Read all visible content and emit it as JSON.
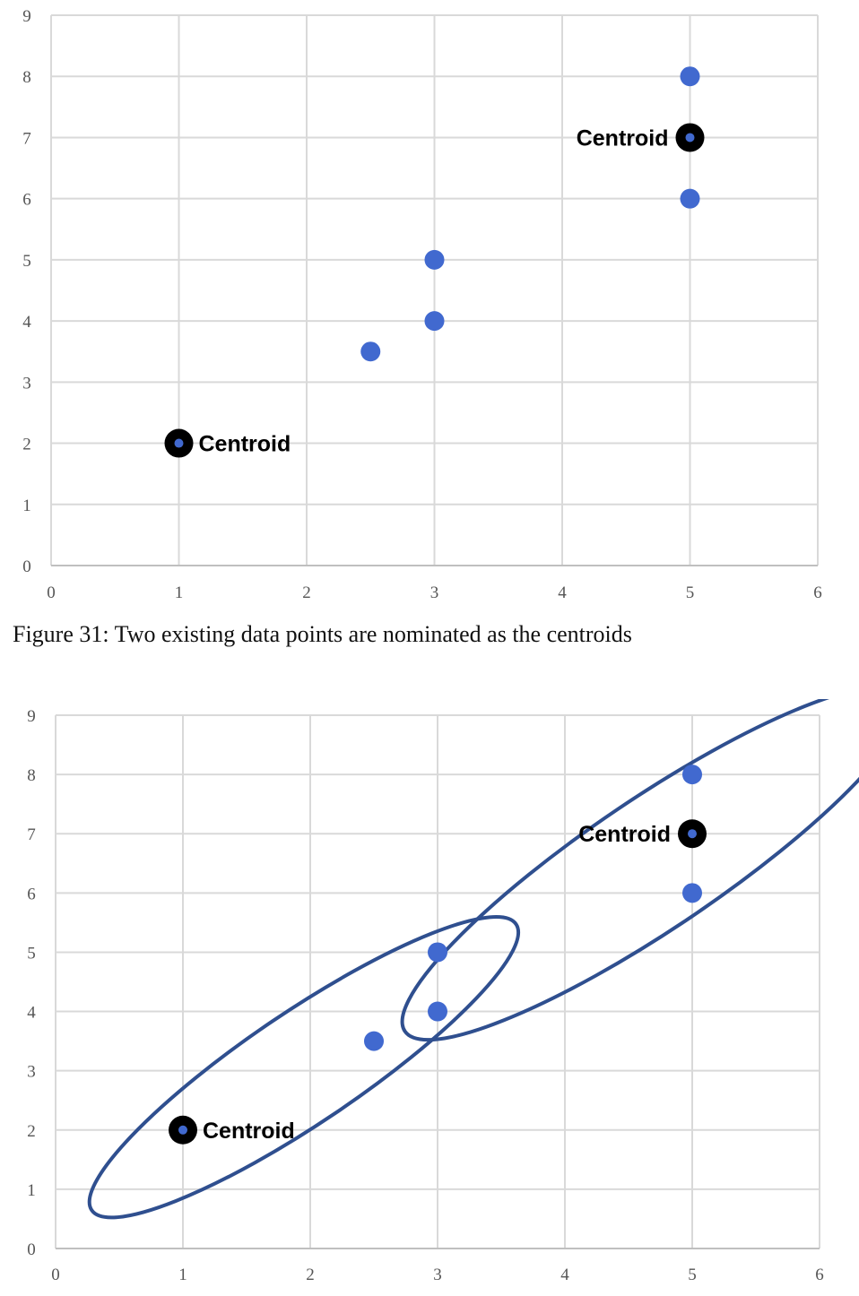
{
  "caption": "Figure 31: Two existing data points are nominated as the centroids",
  "colors": {
    "point": "#4169cf",
    "centroid_ring": "#000000",
    "cluster_ellipse": "#2f4f8f",
    "grid": "#d9d9d9",
    "axis": "#bfbfbf"
  },
  "chart_data": [
    {
      "type": "scatter",
      "title": "",
      "xlabel": "",
      "ylabel": "",
      "xlim": [
        0,
        6
      ],
      "ylim": [
        0,
        9
      ],
      "x_ticks": [
        "0",
        "1",
        "2",
        "3",
        "4",
        "5",
        "6"
      ],
      "y_ticks": [
        "0",
        "1",
        "2",
        "3",
        "4",
        "5",
        "6",
        "7",
        "8",
        "9"
      ],
      "grid": true,
      "series": [
        {
          "x": [
            1,
            2.5,
            3,
            3,
            5,
            5,
            5
          ],
          "y": [
            2,
            3.5,
            4,
            5,
            6,
            7,
            8
          ]
        }
      ],
      "centroids": [
        {
          "x": 1,
          "y": 2,
          "label": "Centroid",
          "label_side": "right"
        },
        {
          "x": 5,
          "y": 7,
          "label": "Centroid",
          "label_side": "left"
        }
      ],
      "clusters": []
    },
    {
      "type": "scatter",
      "title": "",
      "xlabel": "",
      "ylabel": "",
      "xlim": [
        0,
        6
      ],
      "ylim": [
        0,
        9
      ],
      "x_ticks": [
        "0",
        "1",
        "2",
        "3",
        "4",
        "5",
        "6"
      ],
      "y_ticks": [
        "0",
        "1",
        "2",
        "3",
        "4",
        "5",
        "6",
        "7",
        "8",
        "9"
      ],
      "grid": true,
      "series": [
        {
          "x": [
            1,
            2.5,
            3,
            3,
            5,
            5,
            5
          ],
          "y": [
            2,
            3.5,
            4,
            5,
            6,
            7,
            8
          ]
        }
      ],
      "centroids": [
        {
          "x": 1,
          "y": 2,
          "label": "Centroid",
          "label_side": "right"
        },
        {
          "x": 5,
          "y": 7,
          "label": "Centroid",
          "label_side": "left"
        }
      ],
      "clusters": [
        {
          "cx": 1.95,
          "cy": 3.06,
          "rx": 2.01,
          "ry": 0.94,
          "rotation_deg": 34
        },
        {
          "cx": 4.7,
          "cy": 6.5,
          "rx": 2.36,
          "ry": 1.1,
          "rotation_deg": 34
        }
      ]
    }
  ]
}
